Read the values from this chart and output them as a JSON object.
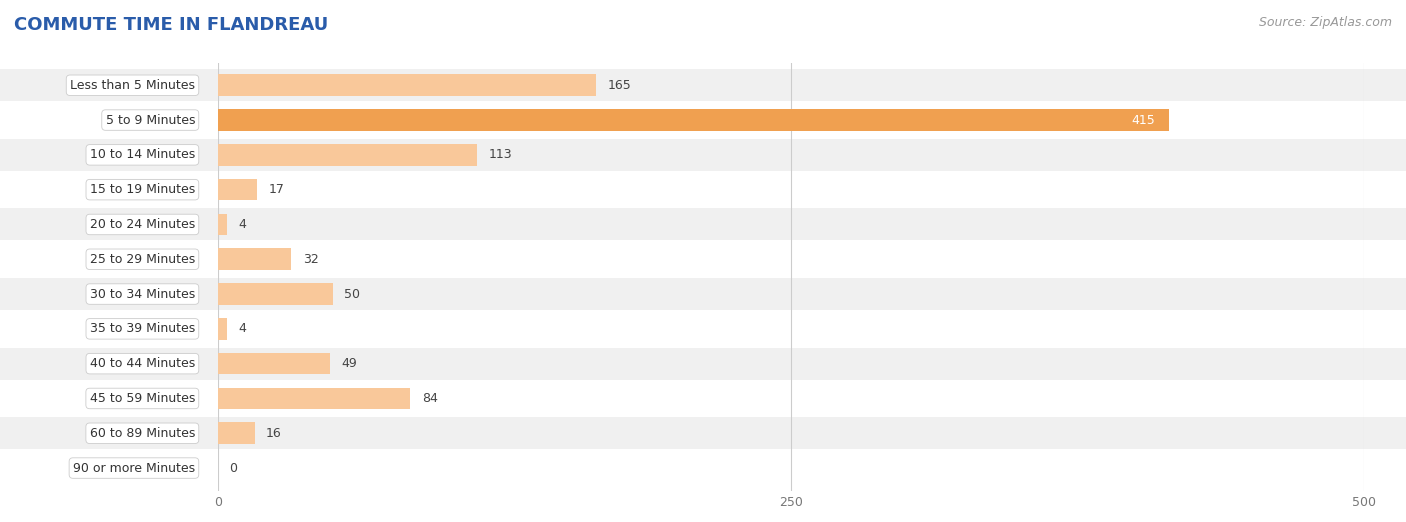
{
  "title": "COMMUTE TIME IN FLANDREAU",
  "source": "Source: ZipAtlas.com",
  "categories": [
    "Less than 5 Minutes",
    "5 to 9 Minutes",
    "10 to 14 Minutes",
    "15 to 19 Minutes",
    "20 to 24 Minutes",
    "25 to 29 Minutes",
    "30 to 34 Minutes",
    "35 to 39 Minutes",
    "40 to 44 Minutes",
    "45 to 59 Minutes",
    "60 to 89 Minutes",
    "90 or more Minutes"
  ],
  "values": [
    165,
    415,
    113,
    17,
    4,
    32,
    50,
    4,
    49,
    84,
    16,
    0
  ],
  "bar_color_normal": "#f9c89a",
  "bar_color_highlight": "#f0a050",
  "highlight_index": 1,
  "xlim": [
    0,
    500
  ],
  "xticks": [
    0,
    250,
    500
  ],
  "row_bg_even": "#f0f0f0",
  "row_bg_odd": "#ffffff",
  "title_fontsize": 13,
  "source_fontsize": 9,
  "label_fontsize": 9,
  "value_fontsize": 9,
  "label_box_color": "#ffffff",
  "label_box_edge": "#cccccc",
  "title_color": "#2a5caa",
  "value_color_normal": "#444444",
  "value_color_highlight": "#ffffff",
  "grid_color": "#cccccc",
  "tick_color": "#777777"
}
